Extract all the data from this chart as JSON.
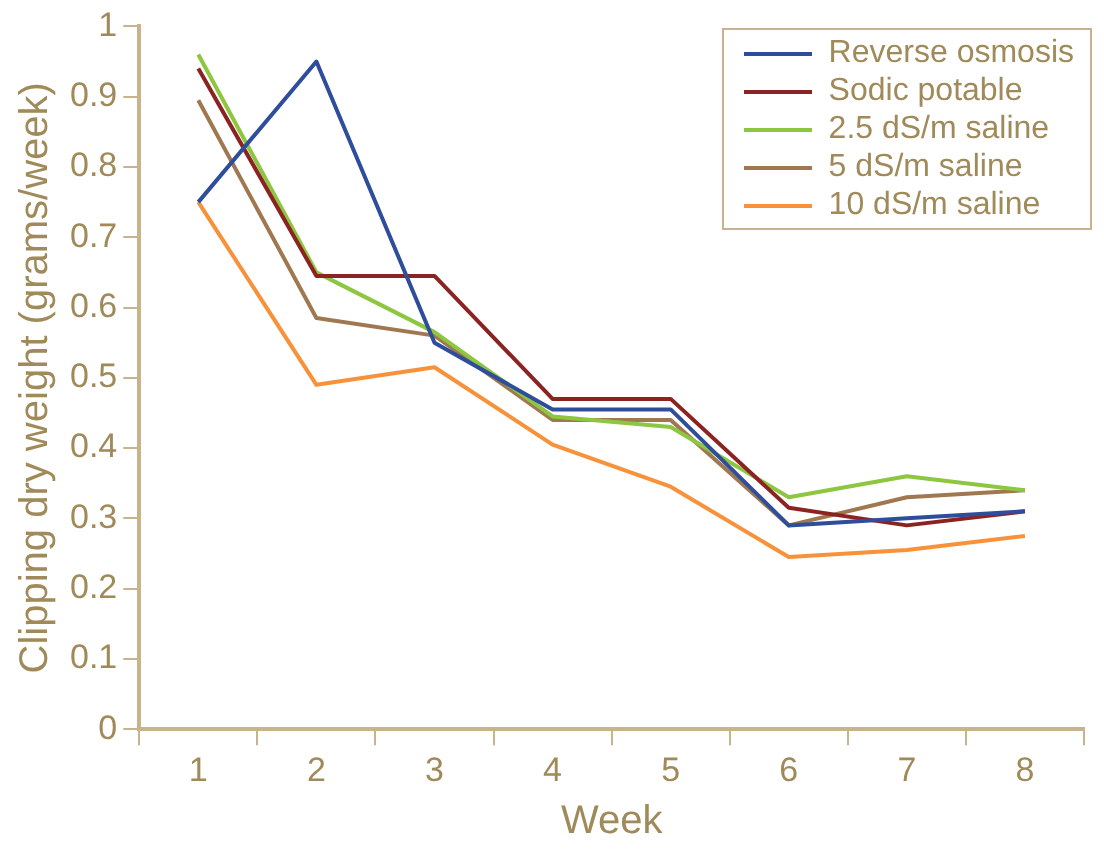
{
  "chart_data": {
    "type": "line",
    "xlabel": "Week",
    "ylabel": "Clipping dry weight (grams/week)",
    "categories": [
      "1",
      "2",
      "3",
      "4",
      "5",
      "6",
      "7",
      "8"
    ],
    "ylim": [
      0,
      1
    ],
    "yticks": [
      0,
      0.1,
      0.2,
      0.3,
      0.4,
      0.5,
      0.6,
      0.7,
      0.8,
      0.9,
      1
    ],
    "grid": false,
    "legend": "top right",
    "marker": "none",
    "line_style": "solid",
    "series": [
      {
        "name": "Reverse osmosis",
        "color": "#2e4d9b",
        "values": [
          0.75,
          0.95,
          0.55,
          0.455,
          0.455,
          0.29,
          0.3,
          0.31
        ]
      },
      {
        "name": "Sodic potable",
        "color": "#8b2323",
        "values": [
          0.94,
          0.645,
          0.645,
          0.47,
          0.47,
          0.315,
          0.29,
          0.31
        ]
      },
      {
        "name": "2.5 dS/m saline",
        "color": "#8dc63f",
        "values": [
          0.96,
          0.65,
          0.565,
          0.445,
          0.43,
          0.33,
          0.36,
          0.34
        ]
      },
      {
        "name": "5 dS/m saline",
        "color": "#a07850",
        "values": [
          0.895,
          0.585,
          0.56,
          0.44,
          0.44,
          0.29,
          0.33,
          0.34
        ]
      },
      {
        "name": "10 dS/m saline",
        "color": "#f7923a",
        "values": [
          0.75,
          0.49,
          0.515,
          0.405,
          0.345,
          0.245,
          0.255,
          0.275
        ]
      }
    ]
  }
}
